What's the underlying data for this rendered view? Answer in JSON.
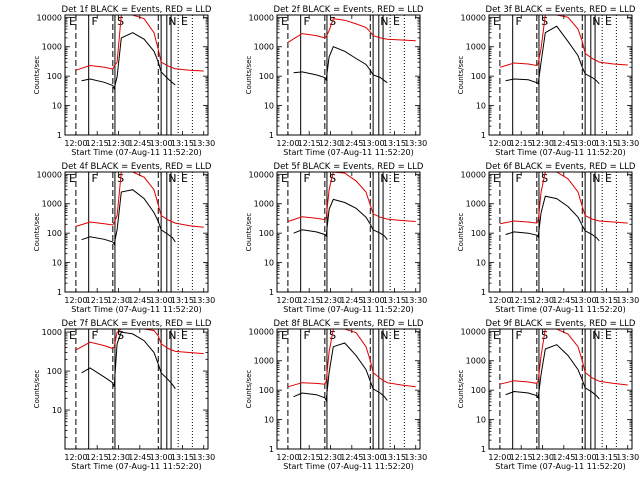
{
  "chart_data": [
    {
      "type": "line",
      "title": "Det 1f BLACK = Events, RED = LLD",
      "xlabel": "Start Time (07-Aug-11 11:52:20)",
      "ylabel": "Counts/sec",
      "xticks": [
        "12:00",
        "12:15",
        "12:30",
        "12:45",
        "13:00",
        "13:15",
        "13:30"
      ],
      "yticks": [
        "1",
        "10",
        "100",
        "1000",
        "10000"
      ],
      "xlim": [
        "11:52:20",
        "13:33:00"
      ],
      "ylim": [
        1,
        12000
      ],
      "yscale": "log",
      "flags": [
        "E",
        "F",
        "S",
        "N",
        "E"
      ],
      "series": [
        {
          "name": "Events",
          "color": "#000000",
          "x": [
            "12:04",
            "12:10",
            "12:20",
            "12:26",
            "12:27",
            "12:29",
            "12:32",
            "12:40",
            "12:48",
            "12:55",
            "12:58",
            "13:00",
            "13:05",
            "13:08",
            "13:10"
          ],
          "y": [
            70,
            80,
            62,
            48,
            38,
            95,
            2000,
            3000,
            1800,
            700,
            300,
            140,
            80,
            60,
            50
          ]
        },
        {
          "name": "LLD",
          "color": "#e00000",
          "x": [
            "12:00",
            "12:10",
            "12:20",
            "12:26",
            "12:27",
            "12:29",
            "12:32",
            "12:40",
            "12:48",
            "12:55",
            "12:58",
            "13:00",
            "13:05",
            "13:10",
            "13:20",
            "13:30"
          ],
          "y": [
            160,
            230,
            200,
            175,
            220,
            300,
            12000,
            12000,
            9000,
            3000,
            800,
            300,
            220,
            180,
            160,
            150
          ]
        }
      ]
    },
    {
      "type": "line",
      "title": "Det 2f BLACK = Events, RED = LLD",
      "xlabel": "Start Time (07-Aug-11 11:52:20)",
      "ylabel": "Counts/sec",
      "xticks": [
        "12:00",
        "12:15",
        "12:30",
        "12:45",
        "13:00",
        "13:15",
        "13:30"
      ],
      "yticks": [
        "1",
        "10",
        "100",
        "1000",
        "10000"
      ],
      "xlim": [
        "11:52:20",
        "13:33:00"
      ],
      "ylim": [
        1,
        12000
      ],
      "yscale": "log",
      "flags": [
        "E",
        "F",
        "S",
        "N",
        "E"
      ],
      "series": [
        {
          "name": "Events",
          "color": "#000000",
          "x": [
            "12:04",
            "12:10",
            "12:20",
            "12:26",
            "12:27",
            "12:29",
            "12:32",
            "12:40",
            "12:48",
            "12:55",
            "12:58",
            "13:00",
            "13:05",
            "13:08",
            "13:10"
          ],
          "y": [
            130,
            140,
            110,
            90,
            75,
            450,
            1000,
            700,
            400,
            250,
            160,
            110,
            90,
            70,
            60
          ]
        },
        {
          "name": "LLD",
          "color": "#e00000",
          "x": [
            "12:00",
            "12:10",
            "12:20",
            "12:26",
            "12:27",
            "12:29",
            "12:32",
            "12:40",
            "12:48",
            "12:55",
            "12:58",
            "13:00",
            "13:05",
            "13:10",
            "13:20",
            "13:30"
          ],
          "y": [
            1400,
            2800,
            2400,
            2000,
            2200,
            3500,
            9000,
            8000,
            6000,
            4500,
            3200,
            2400,
            2000,
            1800,
            1700,
            1600
          ]
        }
      ]
    },
    {
      "type": "line",
      "title": "Det 3f BLACK = Events, RED = LLD",
      "xlabel": "Start Time (07-Aug-11 11:52:20)",
      "ylabel": "Counts/sec",
      "xticks": [
        "12:00",
        "12:15",
        "12:30",
        "12:45",
        "13:00",
        "13:15",
        "13:30"
      ],
      "yticks": [
        "1",
        "10",
        "100",
        "1000",
        "10000"
      ],
      "xlim": [
        "11:52:20",
        "13:33:00"
      ],
      "ylim": [
        1,
        12000
      ],
      "yscale": "log",
      "flags": [
        "E",
        "F",
        "S",
        "N",
        "E"
      ],
      "series": [
        {
          "name": "Events",
          "color": "#000000",
          "x": [
            "12:04",
            "12:10",
            "12:20",
            "12:26",
            "12:27",
            "12:29",
            "12:32",
            "12:40",
            "12:48",
            "12:55",
            "12:58",
            "13:00",
            "13:05",
            "13:08",
            "13:10"
          ],
          "y": [
            70,
            80,
            75,
            60,
            55,
            300,
            3000,
            5000,
            1500,
            500,
            200,
            120,
            90,
            70,
            55
          ]
        },
        {
          "name": "LLD",
          "color": "#e00000",
          "x": [
            "12:00",
            "12:10",
            "12:20",
            "12:26",
            "12:27",
            "12:29",
            "12:32",
            "12:40",
            "12:48",
            "12:55",
            "12:58",
            "13:00",
            "13:05",
            "13:10",
            "13:20",
            "13:30"
          ],
          "y": [
            200,
            280,
            260,
            230,
            270,
            900,
            12000,
            12000,
            10000,
            4000,
            1500,
            600,
            400,
            300,
            260,
            240
          ]
        }
      ]
    },
    {
      "type": "line",
      "title": "Det 4f BLACK = Events, RED = LLD",
      "xlabel": "Start Time (07-Aug-11 11:52:20)",
      "ylabel": "Counts/sec",
      "xticks": [
        "12:00",
        "12:15",
        "12:30",
        "12:45",
        "13:00",
        "13:15",
        "13:30"
      ],
      "yticks": [
        "1",
        "10",
        "100",
        "1000",
        "10000"
      ],
      "xlim": [
        "11:52:20",
        "13:33:00"
      ],
      "ylim": [
        1,
        12000
      ],
      "yscale": "log",
      "flags": [
        "E",
        "F",
        "S",
        "N",
        "E"
      ],
      "series": [
        {
          "name": "Events",
          "color": "#000000",
          "x": [
            "12:04",
            "12:10",
            "12:20",
            "12:26",
            "12:27",
            "12:29",
            "12:32",
            "12:40",
            "12:48",
            "12:55",
            "12:58",
            "13:00",
            "13:05",
            "13:08",
            "13:10"
          ],
          "y": [
            60,
            75,
            62,
            50,
            42,
            130,
            2500,
            3000,
            1500,
            500,
            250,
            130,
            90,
            70,
            50
          ]
        },
        {
          "name": "LLD",
          "color": "#e00000",
          "x": [
            "12:00",
            "12:10",
            "12:20",
            "12:26",
            "12:27",
            "12:29",
            "12:32",
            "12:40",
            "12:48",
            "12:55",
            "12:58",
            "13:00",
            "13:05",
            "13:10",
            "13:20",
            "13:30"
          ],
          "y": [
            170,
            240,
            210,
            190,
            230,
            400,
            12000,
            12000,
            8000,
            3000,
            900,
            400,
            280,
            220,
            180,
            160
          ]
        }
      ]
    },
    {
      "type": "line",
      "title": "Det 5f BLACK = Events, RED = LLD",
      "xlabel": "Start Time (07-Aug-11 11:52:20)",
      "ylabel": "Counts/sec",
      "xticks": [
        "12:00",
        "12:15",
        "12:30",
        "12:45",
        "13:00",
        "13:15",
        "13:30"
      ],
      "yticks": [
        "1",
        "10",
        "100",
        "1000",
        "10000"
      ],
      "xlim": [
        "11:52:20",
        "13:33:00"
      ],
      "ylim": [
        1,
        12000
      ],
      "yscale": "log",
      "flags": [
        "E",
        "F",
        "S",
        "N",
        "E"
      ],
      "series": [
        {
          "name": "Events",
          "color": "#000000",
          "x": [
            "12:04",
            "12:10",
            "12:20",
            "12:26",
            "12:27",
            "12:29",
            "12:32",
            "12:40",
            "12:48",
            "12:55",
            "12:58",
            "13:00",
            "13:05",
            "13:08",
            "13:10"
          ],
          "y": [
            100,
            130,
            110,
            90,
            80,
            650,
            1400,
            1100,
            700,
            350,
            200,
            130,
            100,
            80,
            60
          ]
        },
        {
          "name": "LLD",
          "color": "#e00000",
          "x": [
            "12:00",
            "12:10",
            "12:20",
            "12:26",
            "12:27",
            "12:29",
            "12:32",
            "12:40",
            "12:48",
            "12:55",
            "12:58",
            "13:00",
            "13:05",
            "13:10",
            "13:20",
            "13:30"
          ],
          "y": [
            250,
            360,
            320,
            290,
            330,
            3000,
            12000,
            11000,
            6000,
            2500,
            900,
            450,
            350,
            300,
            270,
            250
          ]
        }
      ]
    },
    {
      "type": "line",
      "title": "Det 6f BLACK = Events, RED = LLD",
      "xlabel": "Start Time (07-Aug-11 11:52:20)",
      "ylabel": "Counts/sec",
      "xticks": [
        "12:00",
        "12:15",
        "12:30",
        "12:45",
        "13:00",
        "13:15",
        "13:30"
      ],
      "yticks": [
        "1",
        "10",
        "100",
        "1000",
        "10000"
      ],
      "xlim": [
        "11:52:20",
        "13:33:00"
      ],
      "ylim": [
        1,
        12000
      ],
      "yscale": "log",
      "flags": [
        "E",
        "F",
        "S",
        "N",
        "E"
      ],
      "series": [
        {
          "name": "Events",
          "color": "#000000",
          "x": [
            "12:04",
            "12:10",
            "12:20",
            "12:26",
            "12:27",
            "12:29",
            "12:32",
            "12:40",
            "12:48",
            "12:55",
            "12:58",
            "13:00",
            "13:05",
            "13:08",
            "13:10"
          ],
          "y": [
            90,
            110,
            100,
            85,
            75,
            500,
            1800,
            1500,
            800,
            350,
            180,
            120,
            90,
            70,
            55
          ]
        },
        {
          "name": "LLD",
          "color": "#e00000",
          "x": [
            "12:00",
            "12:10",
            "12:20",
            "12:26",
            "12:27",
            "12:29",
            "12:32",
            "12:40",
            "12:48",
            "12:55",
            "12:58",
            "13:00",
            "13:05",
            "13:10",
            "13:20",
            "13:30"
          ],
          "y": [
            210,
            260,
            240,
            220,
            260,
            2500,
            12000,
            12000,
            7000,
            2500,
            800,
            400,
            300,
            260,
            240,
            220
          ]
        }
      ]
    },
    {
      "type": "line",
      "title": "Det 7f BLACK = Events, RED = LLD",
      "xlabel": "Start Time (07-Aug-11 11:52:20)",
      "ylabel": "Counts/sec",
      "xticks": [
        "12:00",
        "12:15",
        "12:30",
        "12:45",
        "13:00",
        "13:15",
        "13:30"
      ],
      "yticks": [
        "10",
        "100",
        "1000"
      ],
      "xlim": [
        "11:52:20",
        "13:33:00"
      ],
      "ylim": [
        1,
        1200
      ],
      "yscale": "log",
      "flags": [
        "E",
        "F",
        "S",
        "N",
        "E"
      ],
      "series": [
        {
          "name": "Events",
          "color": "#000000",
          "x": [
            "12:04",
            "12:10",
            "12:20",
            "12:26",
            "12:27",
            "12:29",
            "12:32",
            "12:40",
            "12:48",
            "12:55",
            "12:58",
            "13:00",
            "13:05",
            "13:08",
            "13:10"
          ],
          "y": [
            90,
            120,
            70,
            50,
            40,
            500,
            1000,
            900,
            600,
            300,
            150,
            90,
            60,
            45,
            35
          ]
        },
        {
          "name": "LLD",
          "color": "#e00000",
          "x": [
            "12:00",
            "12:10",
            "12:20",
            "12:26",
            "12:27",
            "12:29",
            "12:32",
            "12:40",
            "12:48",
            "12:55",
            "12:58",
            "13:00",
            "13:05",
            "13:10",
            "13:20",
            "13:30"
          ],
          "y": [
            350,
            550,
            450,
            380,
            420,
            1000,
            1200,
            1200,
            1200,
            1100,
            800,
            500,
            380,
            320,
            300,
            280
          ]
        }
      ]
    },
    {
      "type": "line",
      "title": "Det 8f BLACK = Events, RED = LLD",
      "xlabel": "Start Time (07-Aug-11 11:52:20)",
      "ylabel": "Counts/sec",
      "xticks": [
        "12:00",
        "12:15",
        "12:30",
        "12:45",
        "13:00",
        "13:15",
        "13:30"
      ],
      "yticks": [
        "1",
        "10",
        "100",
        "1000",
        "10000"
      ],
      "xlim": [
        "11:52:20",
        "13:33:00"
      ],
      "ylim": [
        1,
        12000
      ],
      "yscale": "log",
      "flags": [
        "E",
        "F",
        "S",
        "N",
        "E"
      ],
      "series": [
        {
          "name": "Events",
          "color": "#000000",
          "x": [
            "12:04",
            "12:10",
            "12:20",
            "12:26",
            "12:27",
            "12:29",
            "12:32",
            "12:40",
            "12:48",
            "12:55",
            "12:58",
            "13:00",
            "13:05",
            "13:08",
            "13:10"
          ],
          "y": [
            60,
            80,
            70,
            55,
            45,
            400,
            3000,
            4000,
            1500,
            500,
            200,
            110,
            80,
            60,
            45
          ]
        },
        {
          "name": "LLD",
          "color": "#e00000",
          "x": [
            "12:00",
            "12:10",
            "12:20",
            "12:26",
            "12:27",
            "12:29",
            "12:32",
            "12:40",
            "12:48",
            "12:55",
            "12:58",
            "13:00",
            "13:05",
            "13:10",
            "13:20",
            "13:30"
          ],
          "y": [
            130,
            180,
            170,
            160,
            200,
            2000,
            12000,
            12000,
            9000,
            3000,
            1000,
            400,
            250,
            180,
            150,
            130
          ]
        }
      ]
    },
    {
      "type": "line",
      "title": "Det 9f BLACK = Events, RED = LLD",
      "xlabel": "Start Time (07-Aug-11 11:52:20)",
      "ylabel": "Counts/sec",
      "xticks": [
        "12:00",
        "12:15",
        "12:30",
        "12:45",
        "13:00",
        "13:15",
        "13:30"
      ],
      "yticks": [
        "1",
        "10",
        "100",
        "1000",
        "10000"
      ],
      "xlim": [
        "11:52:20",
        "13:33:00"
      ],
      "ylim": [
        1,
        12000
      ],
      "yscale": "log",
      "flags": [
        "E",
        "F",
        "S",
        "N",
        "E"
      ],
      "series": [
        {
          "name": "Events",
          "color": "#000000",
          "x": [
            "12:04",
            "12:10",
            "12:20",
            "12:26",
            "12:27",
            "12:29",
            "12:32",
            "12:40",
            "12:48",
            "12:55",
            "12:58",
            "13:00",
            "13:05",
            "13:08",
            "13:10"
          ],
          "y": [
            70,
            90,
            80,
            65,
            55,
            350,
            2500,
            3500,
            1500,
            500,
            220,
            120,
            85,
            65,
            50
          ]
        },
        {
          "name": "LLD",
          "color": "#e00000",
          "x": [
            "12:00",
            "12:10",
            "12:20",
            "12:26",
            "12:27",
            "12:29",
            "12:32",
            "12:40",
            "12:48",
            "12:55",
            "12:58",
            "13:00",
            "13:05",
            "13:10",
            "13:20",
            "13:30"
          ],
          "y": [
            160,
            210,
            190,
            170,
            210,
            1500,
            12000,
            12000,
            8000,
            3000,
            1000,
            400,
            260,
            200,
            170,
            150
          ]
        }
      ]
    }
  ]
}
